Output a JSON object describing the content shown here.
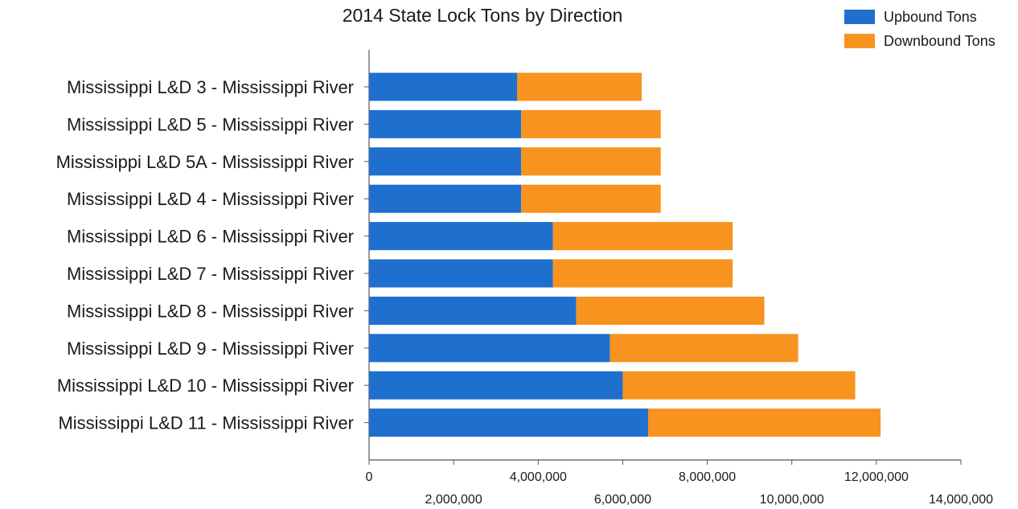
{
  "chart_data": {
    "type": "bar",
    "orientation": "horizontal",
    "stacked": true,
    "title": "2014 State Lock Tons by Direction",
    "xlabel": "",
    "ylabel": "",
    "xlim": [
      0,
      14000000
    ],
    "grid": false,
    "legend_position": "top-right",
    "categories": [
      "Mississippi L&D 3 - Mississippi River",
      "Mississippi L&D 5 - Mississippi River",
      "Mississippi L&D 5A - Mississippi River",
      "Mississippi L&D 4 - Mississippi River",
      "Mississippi L&D 6 - Mississippi River",
      "Mississippi L&D 7 - Mississippi River",
      "Mississippi L&D 8 - Mississippi River",
      "Mississippi L&D 9 - Mississippi River",
      "Mississippi L&D 10 - Mississippi River",
      "Mississippi L&D 11 - Mississippi River"
    ],
    "series": [
      {
        "name": "Upbound Tons",
        "color": "#1f6fcf",
        "values": [
          3500000,
          3600000,
          3600000,
          3600000,
          4350000,
          4350000,
          4900000,
          5700000,
          6000000,
          6600000
        ]
      },
      {
        "name": "Downbound Tons",
        "color": "#f7931e",
        "values": [
          2950000,
          3300000,
          3300000,
          3300000,
          4250000,
          4250000,
          4450000,
          4450000,
          5500000,
          5500000
        ]
      }
    ],
    "ticks_row1": [
      "0",
      "4,000,000",
      "8,000,000",
      "12,000,000"
    ],
    "ticks_row2": [
      "2,000,000",
      "6,000,000",
      "10,000,000",
      "14,000,000"
    ]
  }
}
